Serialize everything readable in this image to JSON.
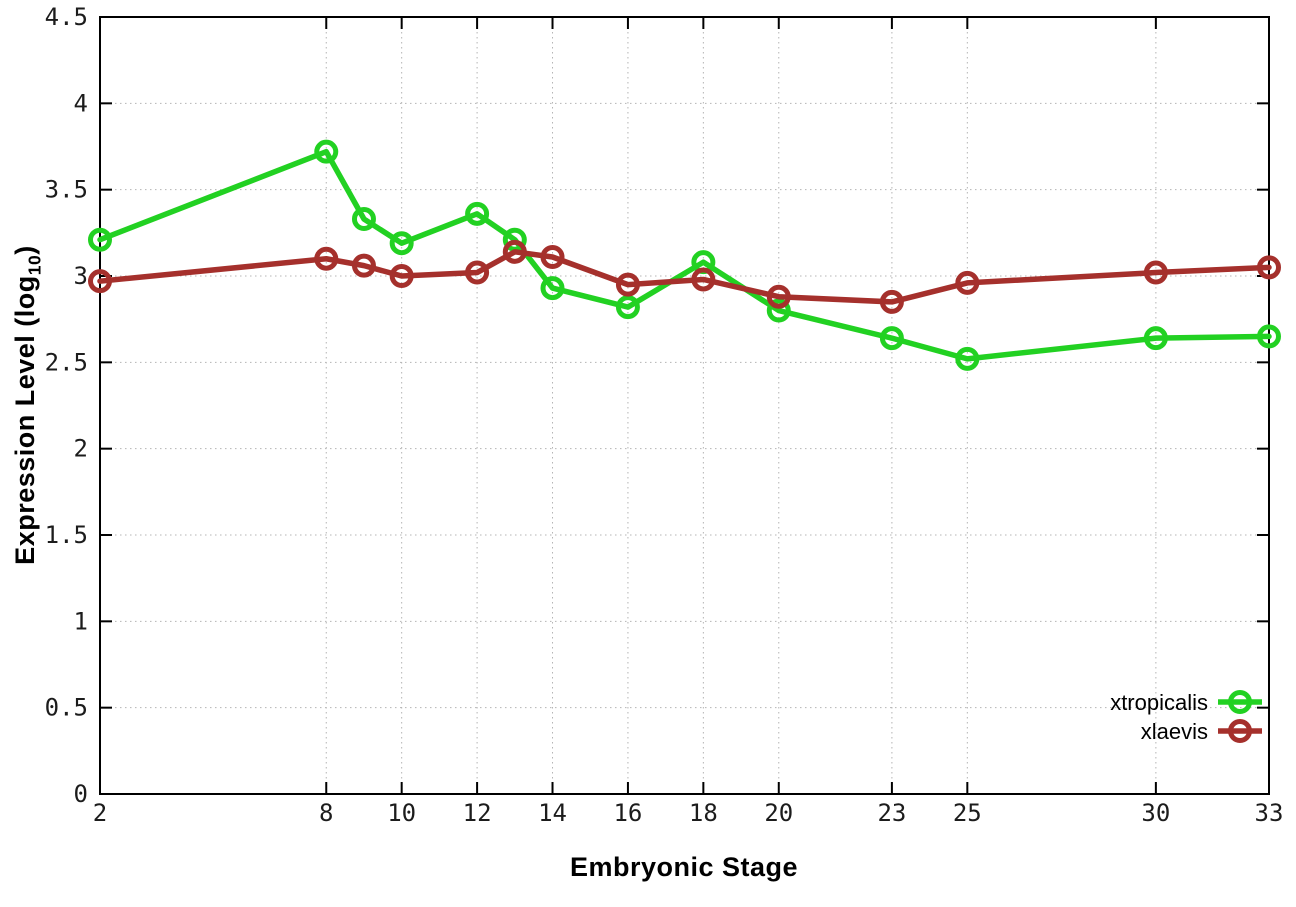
{
  "chart_data": {
    "type": "line",
    "title": "",
    "xlabel": "Embryonic Stage",
    "ylabel_base": "Expression Level (log",
    "ylabel_sub": "10",
    "ylabel_close": ")",
    "x": [
      2,
      8,
      9,
      10,
      12,
      13,
      14,
      16,
      18,
      20,
      23,
      25,
      30,
      33
    ],
    "x_tick_labels": [
      "2",
      "8",
      "10",
      "12",
      "14",
      "16",
      "18",
      "20",
      "23",
      "25",
      "30",
      "33"
    ],
    "x_tick_values": [
      2,
      8,
      10,
      12,
      14,
      16,
      18,
      20,
      23,
      25,
      30,
      33
    ],
    "y_tick_labels": [
      "0",
      "0.5",
      "1",
      "1.5",
      "2",
      "2.5",
      "3",
      "3.5",
      "4",
      "4.5"
    ],
    "y_tick_values": [
      0,
      0.5,
      1,
      1.5,
      2,
      2.5,
      3,
      3.5,
      4,
      4.5
    ],
    "xlim": [
      2,
      33
    ],
    "ylim": [
      0,
      4.5
    ],
    "grid": true,
    "legend_position": "bottom-right",
    "series": [
      {
        "name": "xtropicalis",
        "color": "#22d122",
        "values": [
          3.21,
          3.72,
          3.33,
          3.19,
          3.36,
          3.21,
          2.93,
          2.82,
          3.08,
          2.8,
          2.64,
          2.52,
          2.64,
          2.65
        ]
      },
      {
        "name": "xlaevis",
        "color": "#a5302c",
        "values": [
          2.97,
          3.1,
          3.06,
          3.0,
          3.02,
          3.14,
          3.11,
          2.95,
          2.98,
          2.88,
          2.85,
          2.96,
          3.02,
          3.05
        ]
      }
    ]
  },
  "colors": {
    "background": "#ffffff",
    "border": "#000000",
    "grid": "#b4b4b4",
    "tick_text": "#1c1c1c",
    "legend_text": "#000000"
  }
}
